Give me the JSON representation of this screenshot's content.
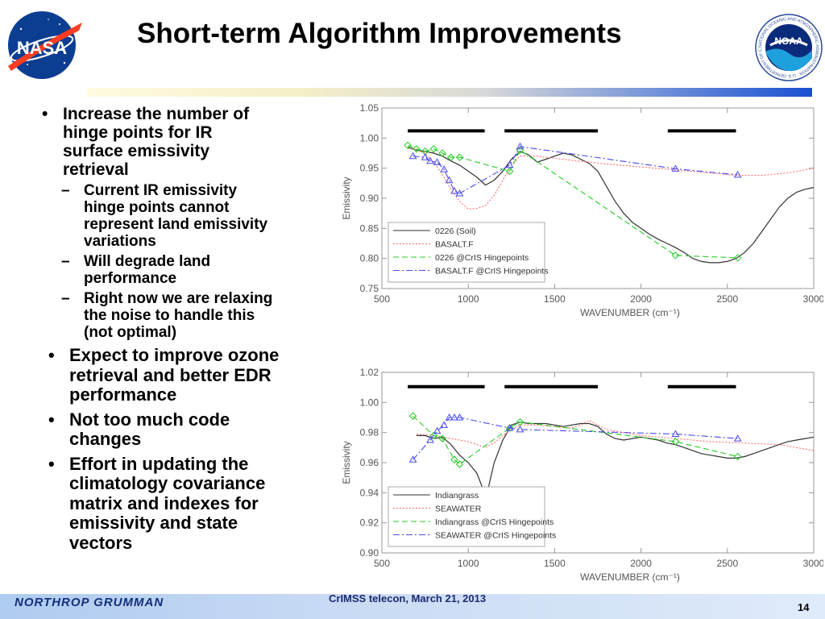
{
  "slide": {
    "title": "Short-term Algorithm Improvements",
    "page_number": "14",
    "footer_text": "CrIMSS telecon, March 21, 2013"
  },
  "logos": {
    "left": "NASA",
    "right": "NOAA",
    "right_ring_text": "NATIONAL OCEANIC AND ATMOSPHERIC ADMINISTRATION · U.S. DEPARTMENT OF COMMERCE",
    "footer": "NORTHROP GRUMMAN"
  },
  "bullets": [
    {
      "text": "Increase the number of hinge points for IR surface emissivity retrieval",
      "lines": [
        "Increase the number of",
        "hinge points for IR",
        "surface emissivity",
        "retrieval"
      ]
    },
    {
      "text": "Current IR emissivity hinge points cannot represent land emissivity variations",
      "lines": [
        "Current IR emissivity",
        "hinge points cannot",
        "represent land emissivity",
        "variations"
      ]
    },
    {
      "text": "Will degrade land performance",
      "lines": [
        "Will degrade land",
        "performance"
      ]
    },
    {
      "text": "Right now we are relaxing the noise to handle this (not optimal)",
      "lines": [
        "Right now we are relaxing",
        "the noise to handle this",
        "(not optimal)"
      ]
    },
    {
      "text": "Expect to improve ozone retrieval and better EDR performance",
      "lines": [
        "Expect to improve ozone",
        "retrieval and better EDR",
        "performance"
      ]
    },
    {
      "text": "Not too much code changes",
      "lines": [
        "Not too much code",
        "changes"
      ]
    },
    {
      "text": "Effort in updating the climatology covariance matrix and indexes for emissivity and state vectors",
      "lines": [
        "Effort in updating the",
        "climatology covariance",
        "matrix and indexes for",
        "emissivity and state",
        "vectors"
      ]
    }
  ],
  "markers": {
    "bullet": "•",
    "dash": "–"
  },
  "chart_data": [
    {
      "type": "line",
      "xlabel": "WAVENUMBER (cm⁻¹)",
      "ylabel": "Emissivity",
      "xlim": [
        500,
        3000
      ],
      "ylim": [
        0.75,
        1.05
      ],
      "x_ticks": [
        "500",
        "1000",
        "1500",
        "2000",
        "2500",
        "3000"
      ],
      "y_ticks": [
        "0.75",
        "0.80",
        "0.85",
        "0.90",
        "0.95",
        "1.00",
        "1.05"
      ],
      "band_bars": [
        [
          650,
          1095
        ],
        [
          1210,
          1750
        ],
        [
          2155,
          2550
        ]
      ],
      "band_bar_y": 1.012,
      "legend_placement": "bottom-left",
      "colors": {
        "0226 (Soil)": "#333333",
        "BASALT.F": "#ff6a6a",
        "0226 @CrIS Hingepoints": "#22cc22",
        "BASALT.F @CrIS Hingepoints": "#4a4aee"
      },
      "series": [
        {
          "name": "0226 (Soil)",
          "style": "solid",
          "x": [
            650,
            700,
            750,
            800,
            850,
            900,
            950,
            1000,
            1050,
            1100,
            1150,
            1200,
            1250,
            1300,
            1350,
            1400,
            1450,
            1500,
            1550,
            1600,
            1650,
            1700,
            1750,
            1800,
            1850,
            1900,
            1950,
            2000,
            2050,
            2100,
            2150,
            2200,
            2250,
            2300,
            2350,
            2400,
            2450,
            2500,
            2550,
            2600,
            2650,
            2700,
            2750,
            2800,
            2850,
            2900,
            2950,
            3000
          ],
          "y": [
            0.985,
            0.98,
            0.978,
            0.975,
            0.97,
            0.962,
            0.955,
            0.945,
            0.935,
            0.922,
            0.93,
            0.945,
            0.965,
            0.978,
            0.972,
            0.96,
            0.965,
            0.97,
            0.975,
            0.972,
            0.965,
            0.958,
            0.945,
            0.92,
            0.895,
            0.875,
            0.86,
            0.85,
            0.84,
            0.832,
            0.825,
            0.818,
            0.81,
            0.8,
            0.795,
            0.793,
            0.793,
            0.795,
            0.8,
            0.81,
            0.825,
            0.845,
            0.865,
            0.885,
            0.9,
            0.91,
            0.915,
            0.918
          ]
        },
        {
          "name": "BASALT.F",
          "style": "dotted",
          "x": [
            650,
            700,
            750,
            800,
            850,
            900,
            950,
            1000,
            1050,
            1100,
            1150,
            1200,
            1250,
            1300,
            1400,
            1600,
            1800,
            2000,
            2200,
            2400,
            2550,
            2700,
            2850,
            3000
          ],
          "y": [
            0.983,
            0.98,
            0.975,
            0.96,
            0.94,
            0.915,
            0.895,
            0.882,
            0.883,
            0.888,
            0.905,
            0.93,
            0.955,
            0.97,
            0.97,
            0.963,
            0.957,
            0.952,
            0.947,
            0.942,
            0.938,
            0.938,
            0.942,
            0.95
          ]
        },
        {
          "name": "0226 @CrIS Hingepoints",
          "style": "dashed",
          "x": [
            650,
            700,
            750,
            800,
            850,
            900,
            950,
            1240,
            1300,
            2200,
            2560
          ],
          "y": [
            0.988,
            0.982,
            0.978,
            0.982,
            0.975,
            0.968,
            0.968,
            0.945,
            0.98,
            0.805,
            0.801
          ]
        },
        {
          "name": "BASALT.F @CrIS Hingepoints",
          "style": "dashdot",
          "x": [
            680,
            750,
            780,
            820,
            860,
            890,
            920,
            950,
            1240,
            1300,
            2200,
            2560
          ],
          "y": [
            0.97,
            0.968,
            0.962,
            0.96,
            0.948,
            0.93,
            0.912,
            0.908,
            0.955,
            0.986,
            0.949,
            0.939
          ]
        }
      ]
    },
    {
      "type": "line",
      "xlabel": "WAVENUMBER (cm⁻¹)",
      "ylabel": "Emissivity",
      "xlim": [
        500,
        3000
      ],
      "ylim": [
        0.9,
        1.02
      ],
      "x_ticks": [
        "500",
        "1000",
        "1500",
        "2000",
        "2500",
        "3000"
      ],
      "y_ticks": [
        "0.90",
        "0.92",
        "0.94",
        "0.96",
        "0.98",
        "1.00",
        "1.02"
      ],
      "band_bars": [
        [
          650,
          1095
        ],
        [
          1210,
          1750
        ],
        [
          2155,
          2550
        ]
      ],
      "band_bar_y": 1.0105,
      "legend_placement": "bottom-left",
      "colors": {
        "Indiangrass": "#333333",
        "SEAWATER": "#ff6a6a",
        "Indiangrass @CrIS Hingepoints": "#22cc22",
        "SEAWATER @CrIS Hingepoints": "#4a4aee"
      },
      "series": [
        {
          "name": "Indiangrass",
          "style": "solid",
          "x": [
            700,
            750,
            800,
            850,
            900,
            950,
            1000,
            1050,
            1080,
            1100,
            1120,
            1150,
            1200,
            1250,
            1300,
            1350,
            1400,
            1450,
            1500,
            1550,
            1600,
            1650,
            1700,
            1750,
            1800,
            1850,
            1900,
            1950,
            2000,
            2050,
            2100,
            2150,
            2200,
            2250,
            2300,
            2350,
            2400,
            2450,
            2500,
            2550,
            2600,
            2650,
            2700,
            2750,
            2800,
            2850,
            2900,
            2950,
            3000
          ],
          "y": [
            0.978,
            0.978,
            0.976,
            0.977,
            0.972,
            0.965,
            0.96,
            0.953,
            0.944,
            0.936,
            0.945,
            0.96,
            0.975,
            0.985,
            0.987,
            0.986,
            0.986,
            0.986,
            0.985,
            0.984,
            0.985,
            0.986,
            0.986,
            0.984,
            0.979,
            0.976,
            0.975,
            0.976,
            0.977,
            0.976,
            0.975,
            0.973,
            0.972,
            0.97,
            0.968,
            0.966,
            0.965,
            0.964,
            0.963,
            0.963,
            0.964,
            0.966,
            0.968,
            0.97,
            0.972,
            0.974,
            0.975,
            0.976,
            0.977
          ]
        },
        {
          "name": "SEAWATER",
          "style": "dotted",
          "x": [
            700,
            800,
            900,
            1000,
            1100,
            1150,
            1200,
            1250,
            1300,
            1400,
            1500,
            1600,
            1650,
            1700,
            1750,
            1800,
            1900,
            2000,
            2200,
            2400,
            2600,
            2800,
            2900,
            3000
          ],
          "y": [
            0.979,
            0.978,
            0.976,
            0.974,
            0.97,
            0.973,
            0.978,
            0.982,
            0.985,
            0.985,
            0.984,
            0.983,
            0.985,
            0.988,
            0.985,
            0.982,
            0.98,
            0.978,
            0.976,
            0.974,
            0.973,
            0.972,
            0.97,
            0.968
          ]
        },
        {
          "name": "Indiangrass @CrIS Hingepoints",
          "style": "dashed",
          "x": [
            680,
            800,
            850,
            920,
            950,
            1240,
            1300,
            2200,
            2560
          ],
          "y": [
            0.991,
            0.978,
            0.976,
            0.962,
            0.959,
            0.983,
            0.987,
            0.974,
            0.964
          ]
        },
        {
          "name": "SEAWATER @CrIS Hingepoints",
          "style": "dashdot",
          "x": [
            680,
            780,
            820,
            860,
            890,
            920,
            950,
            1240,
            1300,
            2200,
            2560
          ],
          "y": [
            0.962,
            0.975,
            0.981,
            0.985,
            0.99,
            0.99,
            0.99,
            0.983,
            0.982,
            0.979,
            0.976
          ]
        }
      ]
    }
  ]
}
